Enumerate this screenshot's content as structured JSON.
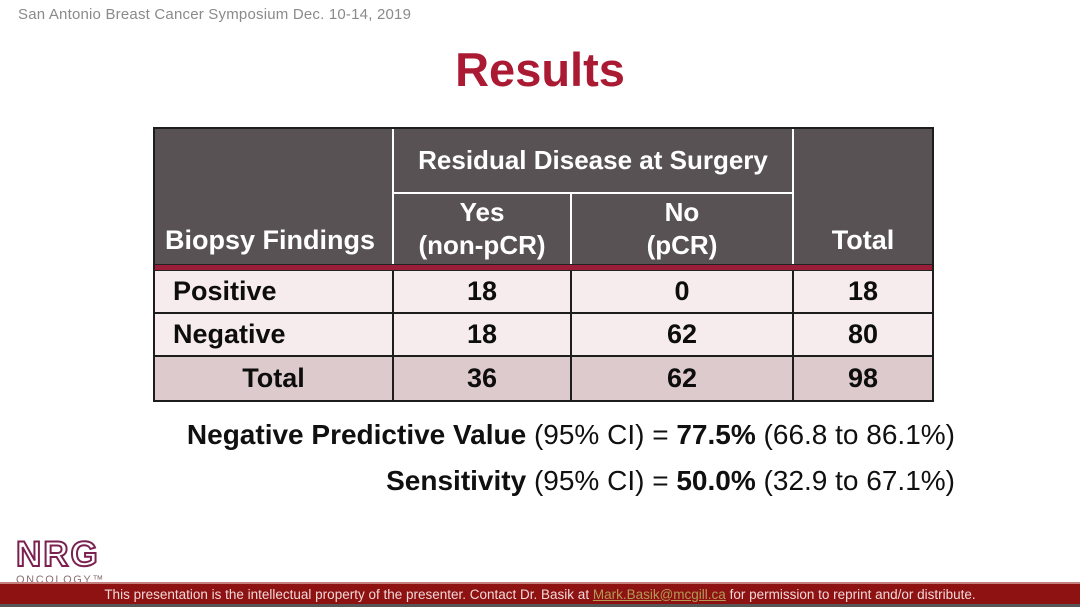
{
  "slide": {
    "header_note": "San Antonio Breast Cancer Symposium Dec. 10-14, 2019",
    "title": "Results"
  },
  "table": {
    "corner_header": "Biopsy Findings",
    "group_header": "Residual Disease at Surgery",
    "sub_headers": [
      {
        "line1": "Yes",
        "line2": "(non-pCR)"
      },
      {
        "line1": "No",
        "line2": "(pCR)"
      }
    ],
    "total_header": "Total",
    "rows": [
      {
        "label": "Positive",
        "yes": "18",
        "no": "0",
        "total": "18"
      },
      {
        "label": "Negative",
        "yes": "18",
        "no": "62",
        "total": "80"
      },
      {
        "label": "Total",
        "yes": "36",
        "no": "62",
        "total": "98"
      }
    ]
  },
  "stats": [
    {
      "name": "Negative Predictive Value",
      "mid": " (95% CI) = ",
      "value": "77.5%",
      "range": " (66.8 to 86.1%)"
    },
    {
      "name": "Sensitivity",
      "mid": " (95% CI) = ",
      "value": "50.0%",
      "range": " (32.9 to 67.1%)"
    }
  ],
  "logo": {
    "name": "NRG",
    "subtitle": "ONCOLOGY™"
  },
  "footer": {
    "text_before": "This presentation is the intellectual property of the presenter. Contact Dr. Basik at ",
    "email": "Mark.Basik@mcgill.ca",
    "text_after": " for permission to reprint and/or distribute."
  },
  "colors": {
    "title": "#aa1a33",
    "table_header_bg": "#595254",
    "accent_band": "#9a1d39",
    "row_bg": "#f6eced",
    "total_row_bg": "#dccacd",
    "footer_bg": "#8e1212",
    "footer_link": "#b29a55",
    "logo_maroon": "#7b2150"
  }
}
